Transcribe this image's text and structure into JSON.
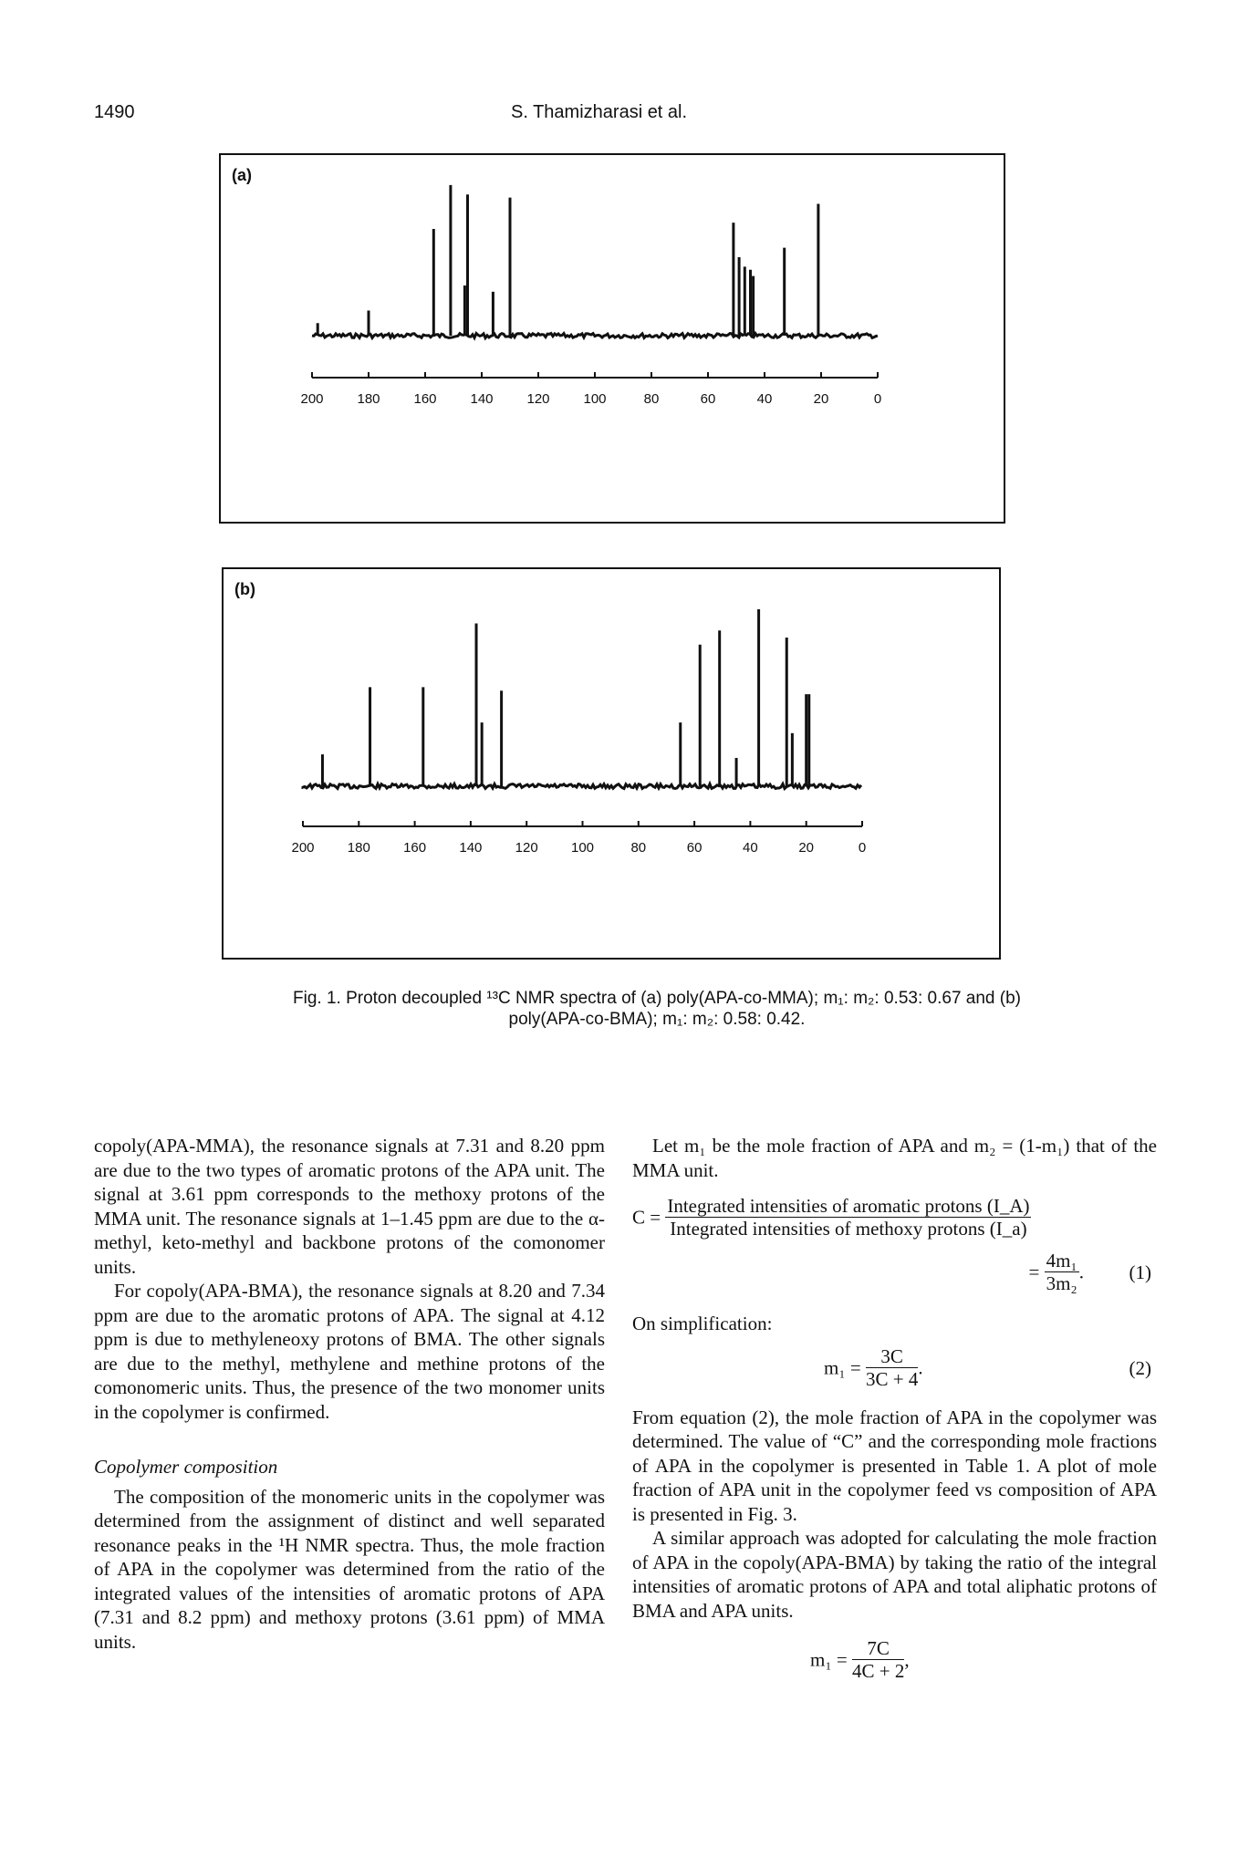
{
  "header": {
    "page_number": "1490",
    "authors": "S. Thamizharasi et al."
  },
  "figure": {
    "panel_a_label": "(a)",
    "panel_b_label": "(b)",
    "axis_ticks": [
      "200",
      "180",
      "160",
      "140",
      "120",
      "100",
      "80",
      "60",
      "40",
      "20",
      "0"
    ],
    "caption_line1": "Fig. 1. Proton decoupled ¹³C NMR spectra of (a) poly(APA-co-MMA); m₁: m₂: 0.53: 0.67 and (b)",
    "caption_line2": "poly(APA-co-BMA); m₁: m₂: 0.58: 0.42."
  },
  "chart_data": [
    {
      "type": "line",
      "name": "(a)",
      "xlim": [
        200,
        0
      ],
      "peaks_ppm": [
        198,
        180,
        157,
        151,
        146,
        145,
        136,
        130,
        51,
        49,
        47,
        45,
        44,
        33,
        21
      ],
      "peaks_height": [
        0.08,
        0.16,
        0.68,
        0.96,
        0.32,
        0.9,
        0.28,
        0.88,
        0.72,
        0.5,
        0.44,
        0.42,
        0.38,
        0.56,
        0.84
      ]
    },
    {
      "type": "line",
      "name": "(b)",
      "xlim": [
        200,
        0
      ],
      "peaks_ppm": [
        193,
        176,
        157,
        138,
        136,
        129,
        65,
        58,
        51,
        45,
        37,
        27,
        25,
        20,
        19
      ],
      "peaks_height": [
        0.18,
        0.56,
        0.56,
        0.92,
        0.36,
        0.54,
        0.36,
        0.8,
        0.88,
        0.16,
        1.0,
        0.84,
        0.3,
        0.52,
        0.52
      ]
    }
  ],
  "left_column": {
    "p1": "copoly(APA-MMA), the resonance signals at 7.31 and 8.20 ppm are due to the two types of aromatic protons of the APA unit. The signal at 3.61 ppm corresponds to the methoxy protons of the MMA unit. The resonance signals at 1–1.45 ppm are due to the α-methyl, keto-methyl and backbone protons of the comonomer units.",
    "p2": "For copoly(APA-BMA), the resonance signals at 8.20 and 7.34 ppm are due to the aromatic protons of APA. The signal at 4.12 ppm is due to methyleneoxy protons of BMA. The other signals are due to the methyl, methylene and methine protons of the comonomeric units. Thus, the presence of the two monomer units in the copolymer is confirmed.",
    "section_title": "Copolymer composition",
    "p3": "The composition of the monomeric units in the copolymer was determined from the assignment of distinct and well separated resonance peaks in the ¹H NMR spectra. Thus, the mole fraction of APA in the copolymer was determined from the ratio of the integrated values of the intensities of aromatic protons of APA (7.31 and 8.2 ppm) and methoxy protons (3.61 ppm) of MMA units."
  },
  "right_column": {
    "p1": "Let m₁ be the mole fraction of APA and m₂ = (1-m₁) that of the MMA unit.",
    "eq_c_lhs": "C =",
    "eq_c_num": "Integrated intensities of aromatic protons (I_A)",
    "eq_c_den": "Integrated intensities of methoxy protons (I_a)",
    "eq1_lhs": "=",
    "eq1_num": "4m₁",
    "eq1_den": "3m₂",
    "eq1_tail": ".",
    "eq1_number": "(1)",
    "p2": "On simplification:",
    "eq2_lhs": "m₁ =",
    "eq2_num": "3C",
    "eq2_den": "3C + 4",
    "eq2_tail": ".",
    "eq2_number": "(2)",
    "p3": "From equation (2), the mole fraction of APA in the copolymer was determined. The value of “C” and the corresponding mole fractions of APA in the copolymer is presented in Table 1. A plot of mole fraction of APA unit in the copolymer feed vs composition of APA is presented in Fig. 3.",
    "p4": "A similar approach was adopted for calculating the mole fraction of APA in the copoly(APA-BMA) by taking the ratio of the integral intensities of aromatic protons of APA and total aliphatic protons of BMA and APA units.",
    "eq3_lhs": "m₁ =",
    "eq3_num": "7C",
    "eq3_den": "4C + 2",
    "eq3_tail": ","
  }
}
